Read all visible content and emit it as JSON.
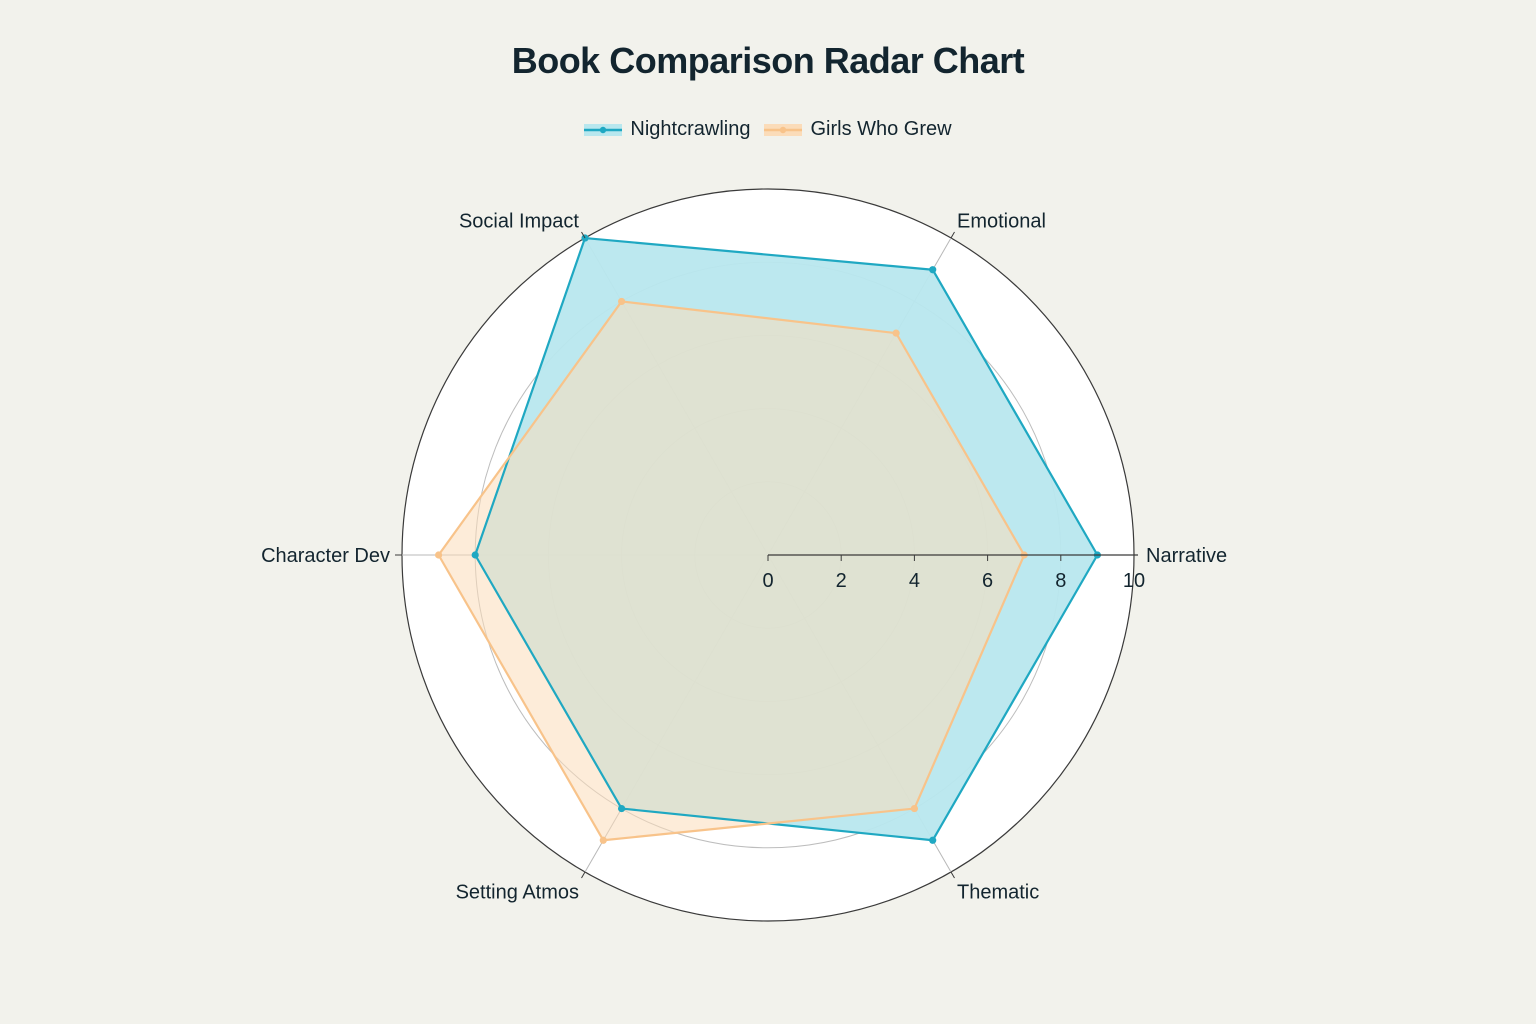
{
  "chart_data": {
    "type": "radar",
    "title": "Book Comparison Radar Chart",
    "categories": [
      "Narrative",
      "Emotional",
      "Social Impact",
      "Character Dev",
      "Setting Atmos",
      "Thematic"
    ],
    "series": [
      {
        "name": "Nightcrawling",
        "values": [
          9,
          9,
          10,
          8,
          8,
          9
        ],
        "color": "#1fa8c2",
        "fill": "#b8e7ee"
      },
      {
        "name": "Girls Who Grew",
        "values": [
          7,
          7,
          8,
          9,
          9,
          8
        ],
        "color": "#f8c38a",
        "fill": "#fbdcb9"
      }
    ],
    "radial_range": [
      0,
      10
    ],
    "radial_ticks": [
      0,
      2,
      4,
      6,
      8,
      10
    ],
    "legend_position": "top-center",
    "grid": true
  }
}
